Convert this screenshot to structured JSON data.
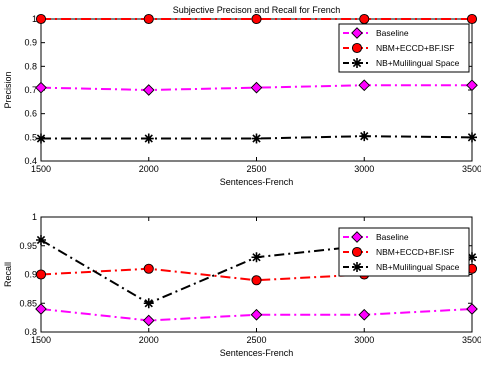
{
  "chart_data": [
    {
      "type": "line",
      "title": "Subjective Precison and Recall for French",
      "xlabel": "Sentences-French",
      "ylabel": "Precision",
      "x": [
        1500,
        2000,
        2500,
        3000,
        3500
      ],
      "xticks": [
        "1500",
        "2000",
        "2500",
        "3000",
        "3500"
      ],
      "yticks": [
        "0.4",
        "0.5",
        "0.6",
        "0.7",
        "0.8",
        "0.9",
        "1"
      ],
      "xlim": [
        1500,
        3500
      ],
      "ylim": [
        0.4,
        1.0
      ],
      "grid": false,
      "legend_position": "top-right",
      "series": [
        {
          "name": "Baseline",
          "values": [
            0.71,
            0.7,
            0.71,
            0.72,
            0.72
          ],
          "color": "#ff00ff",
          "marker": "diamond"
        },
        {
          "name": "NBM+ECCD+BF.ISF",
          "values": [
            1.0,
            1.0,
            1.0,
            1.0,
            1.0
          ],
          "color": "#ff0000",
          "marker": "circle"
        },
        {
          "name": "NB+Mulilingual Space",
          "values": [
            0.495,
            0.495,
            0.495,
            0.505,
            0.5
          ],
          "color": "#000000",
          "marker": "star"
        }
      ]
    },
    {
      "type": "line",
      "title": "",
      "xlabel": "Sentences-French",
      "ylabel": "Recall",
      "x": [
        1500,
        2000,
        2500,
        3000,
        3500
      ],
      "xticks": [
        "1500",
        "2000",
        "2500",
        "3000",
        "3500"
      ],
      "yticks": [
        "0.8",
        "0.85",
        "0.9",
        "0.95",
        "1"
      ],
      "xlim": [
        1500,
        3500
      ],
      "ylim": [
        0.8,
        1.0
      ],
      "grid": false,
      "legend_position": "top-right",
      "series": [
        {
          "name": "Baseline",
          "values": [
            0.84,
            0.82,
            0.83,
            0.83,
            0.84
          ],
          "color": "#ff00ff",
          "marker": "diamond"
        },
        {
          "name": "NBM+ECCD+BF.ISF",
          "values": [
            0.9,
            0.91,
            0.89,
            0.9,
            0.91
          ],
          "color": "#ff0000",
          "marker": "circle"
        },
        {
          "name": "NB+Mulilingual Space",
          "values": [
            0.96,
            0.85,
            0.93,
            0.95,
            0.93
          ],
          "color": "#000000",
          "marker": "star"
        }
      ]
    }
  ]
}
